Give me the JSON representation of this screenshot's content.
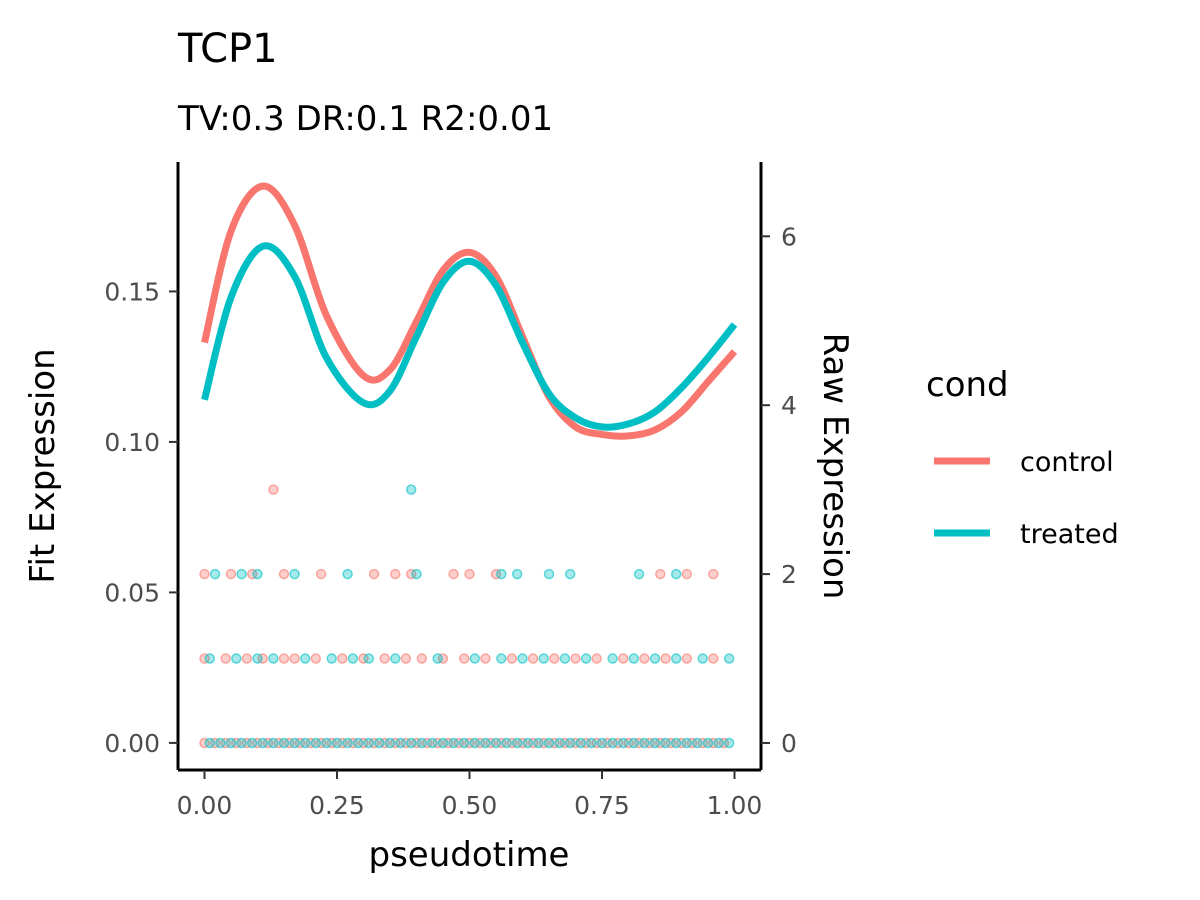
{
  "chart_data": {
    "type": "line",
    "title": "TCP1",
    "subtitle": "TV:0.3 DR:0.1 R2:0.01",
    "xlabel": "pseudotime",
    "ylabel": "Fit Expression",
    "y2label": "Raw Expression",
    "xlim": [
      -0.05,
      1.05
    ],
    "ylim": [
      -0.009,
      0.193
    ],
    "y2lim": [
      -0.32,
      6.88
    ],
    "x_ticks": [
      0.0,
      0.25,
      0.5,
      0.75,
      1.0
    ],
    "x_tick_labels": [
      "0.00",
      "0.25",
      "0.50",
      "0.75",
      "1.00"
    ],
    "y_ticks": [
      0.0,
      0.05,
      0.1,
      0.15
    ],
    "y_tick_labels": [
      "0.00",
      "0.05",
      "0.10",
      "0.15"
    ],
    "y2_ticks": [
      0,
      2,
      4,
      6
    ],
    "y2_tick_labels": [
      "0",
      "2",
      "4",
      "6"
    ],
    "grid": false,
    "legend": {
      "title": "cond",
      "placement": "right",
      "entries": [
        {
          "label": "control",
          "color": "#F8766D"
        },
        {
          "label": "treated",
          "color": "#00BFC4"
        }
      ]
    },
    "series": [
      {
        "name": "control",
        "color": "#F8766D",
        "x": [
          0.0,
          0.05,
          0.11,
          0.17,
          0.23,
          0.3,
          0.35,
          0.4,
          0.45,
          0.5,
          0.55,
          0.6,
          0.65,
          0.7,
          0.75,
          0.8,
          0.85,
          0.9,
          0.95,
          1.0
        ],
        "y": [
          0.133,
          0.17,
          0.185,
          0.172,
          0.142,
          0.122,
          0.124,
          0.14,
          0.157,
          0.163,
          0.155,
          0.135,
          0.115,
          0.105,
          0.1025,
          0.102,
          0.104,
          0.11,
          0.12,
          0.13
        ]
      },
      {
        "name": "treated",
        "color": "#00BFC4",
        "x": [
          0.0,
          0.05,
          0.11,
          0.17,
          0.23,
          0.3,
          0.35,
          0.4,
          0.45,
          0.5,
          0.55,
          0.6,
          0.65,
          0.7,
          0.75,
          0.8,
          0.85,
          0.9,
          0.95,
          1.0
        ],
        "y": [
          0.114,
          0.148,
          0.165,
          0.155,
          0.128,
          0.113,
          0.117,
          0.135,
          0.153,
          0.16,
          0.152,
          0.133,
          0.116,
          0.108,
          0.105,
          0.106,
          0.11,
          0.118,
          0.128,
          0.139
        ]
      }
    ],
    "raw_points": {
      "axis": "y2",
      "levels": [
        0,
        1,
        2,
        3
      ],
      "control": {
        "color": "#F8766D",
        "y0": [
          0.0,
          0.02,
          0.04,
          0.06,
          0.08,
          0.1,
          0.12,
          0.14,
          0.16,
          0.18,
          0.2,
          0.22,
          0.24,
          0.26,
          0.28,
          0.3,
          0.32,
          0.34,
          0.36,
          0.38,
          0.4,
          0.42,
          0.44,
          0.46,
          0.48,
          0.5,
          0.52,
          0.54,
          0.56,
          0.58,
          0.6,
          0.62,
          0.64,
          0.66,
          0.68,
          0.7,
          0.72,
          0.74,
          0.76,
          0.78,
          0.8,
          0.82,
          0.84,
          0.86,
          0.88,
          0.9,
          0.92,
          0.94,
          0.96,
          0.98
        ],
        "y1": [
          0.0,
          0.04,
          0.08,
          0.11,
          0.15,
          0.17,
          0.21,
          0.26,
          0.3,
          0.34,
          0.38,
          0.41,
          0.45,
          0.49,
          0.53,
          0.58,
          0.62,
          0.66,
          0.7,
          0.74,
          0.79,
          0.83,
          0.87,
          0.91,
          0.96
        ],
        "y2": [
          0.0,
          0.05,
          0.09,
          0.15,
          0.22,
          0.32,
          0.36,
          0.39,
          0.47,
          0.5,
          0.55,
          0.86,
          0.91,
          0.96
        ],
        "y3": [
          0.13
        ]
      },
      "treated": {
        "color": "#00BFC4",
        "y0": [
          0.01,
          0.03,
          0.05,
          0.07,
          0.09,
          0.11,
          0.13,
          0.15,
          0.17,
          0.19,
          0.21,
          0.23,
          0.25,
          0.27,
          0.29,
          0.31,
          0.33,
          0.35,
          0.37,
          0.39,
          0.41,
          0.43,
          0.45,
          0.47,
          0.49,
          0.51,
          0.53,
          0.55,
          0.57,
          0.59,
          0.61,
          0.63,
          0.65,
          0.67,
          0.69,
          0.71,
          0.73,
          0.75,
          0.77,
          0.79,
          0.81,
          0.83,
          0.85,
          0.87,
          0.89,
          0.91,
          0.93,
          0.95,
          0.97,
          0.99
        ],
        "y1": [
          0.01,
          0.06,
          0.1,
          0.13,
          0.19,
          0.24,
          0.28,
          0.31,
          0.36,
          0.44,
          0.51,
          0.56,
          0.6,
          0.64,
          0.68,
          0.72,
          0.77,
          0.81,
          0.85,
          0.89,
          0.94,
          0.99
        ],
        "y2": [
          0.02,
          0.07,
          0.1,
          0.17,
          0.27,
          0.4,
          0.56,
          0.59,
          0.65,
          0.69,
          0.82,
          0.89
        ],
        "y3": [
          0.39
        ]
      }
    }
  }
}
